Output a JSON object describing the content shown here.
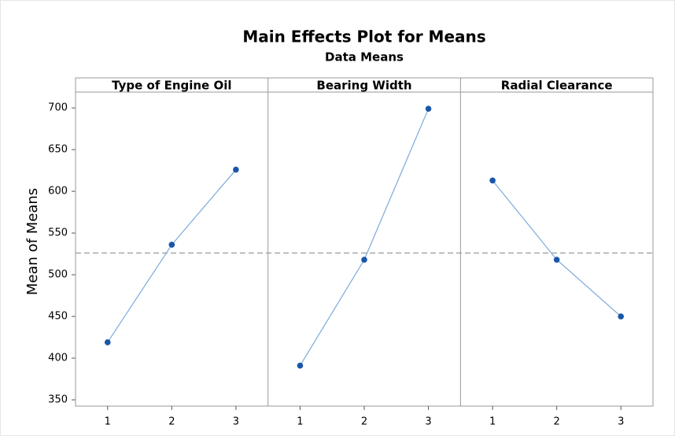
{
  "chart_data": {
    "type": "line",
    "title": "Main Effects Plot for Means",
    "subtitle": "Data Means",
    "ylabel": "Mean of Means",
    "ylim": [
      342.5,
      719
    ],
    "yticks": [
      350,
      400,
      450,
      500,
      550,
      600,
      650,
      700
    ],
    "xlim": [
      0.5,
      3.5
    ],
    "reference_line": 526,
    "color": "#1a56a8",
    "line_color": "#7ea9dc",
    "panels": [
      {
        "title": "Type of Engine Oil",
        "x": [
          1,
          2,
          3
        ],
        "xticks": [
          1,
          2,
          3
        ],
        "values": [
          419,
          536,
          626
        ]
      },
      {
        "title": "Bearing Width",
        "x": [
          1,
          2,
          3
        ],
        "xticks": [
          1,
          2,
          3
        ],
        "values": [
          391,
          518,
          699
        ]
      },
      {
        "title": "Radial Clearance",
        "x": [
          1,
          2,
          3
        ],
        "xticks": [
          1,
          2,
          3
        ],
        "values": [
          613,
          518,
          450
        ]
      }
    ]
  }
}
